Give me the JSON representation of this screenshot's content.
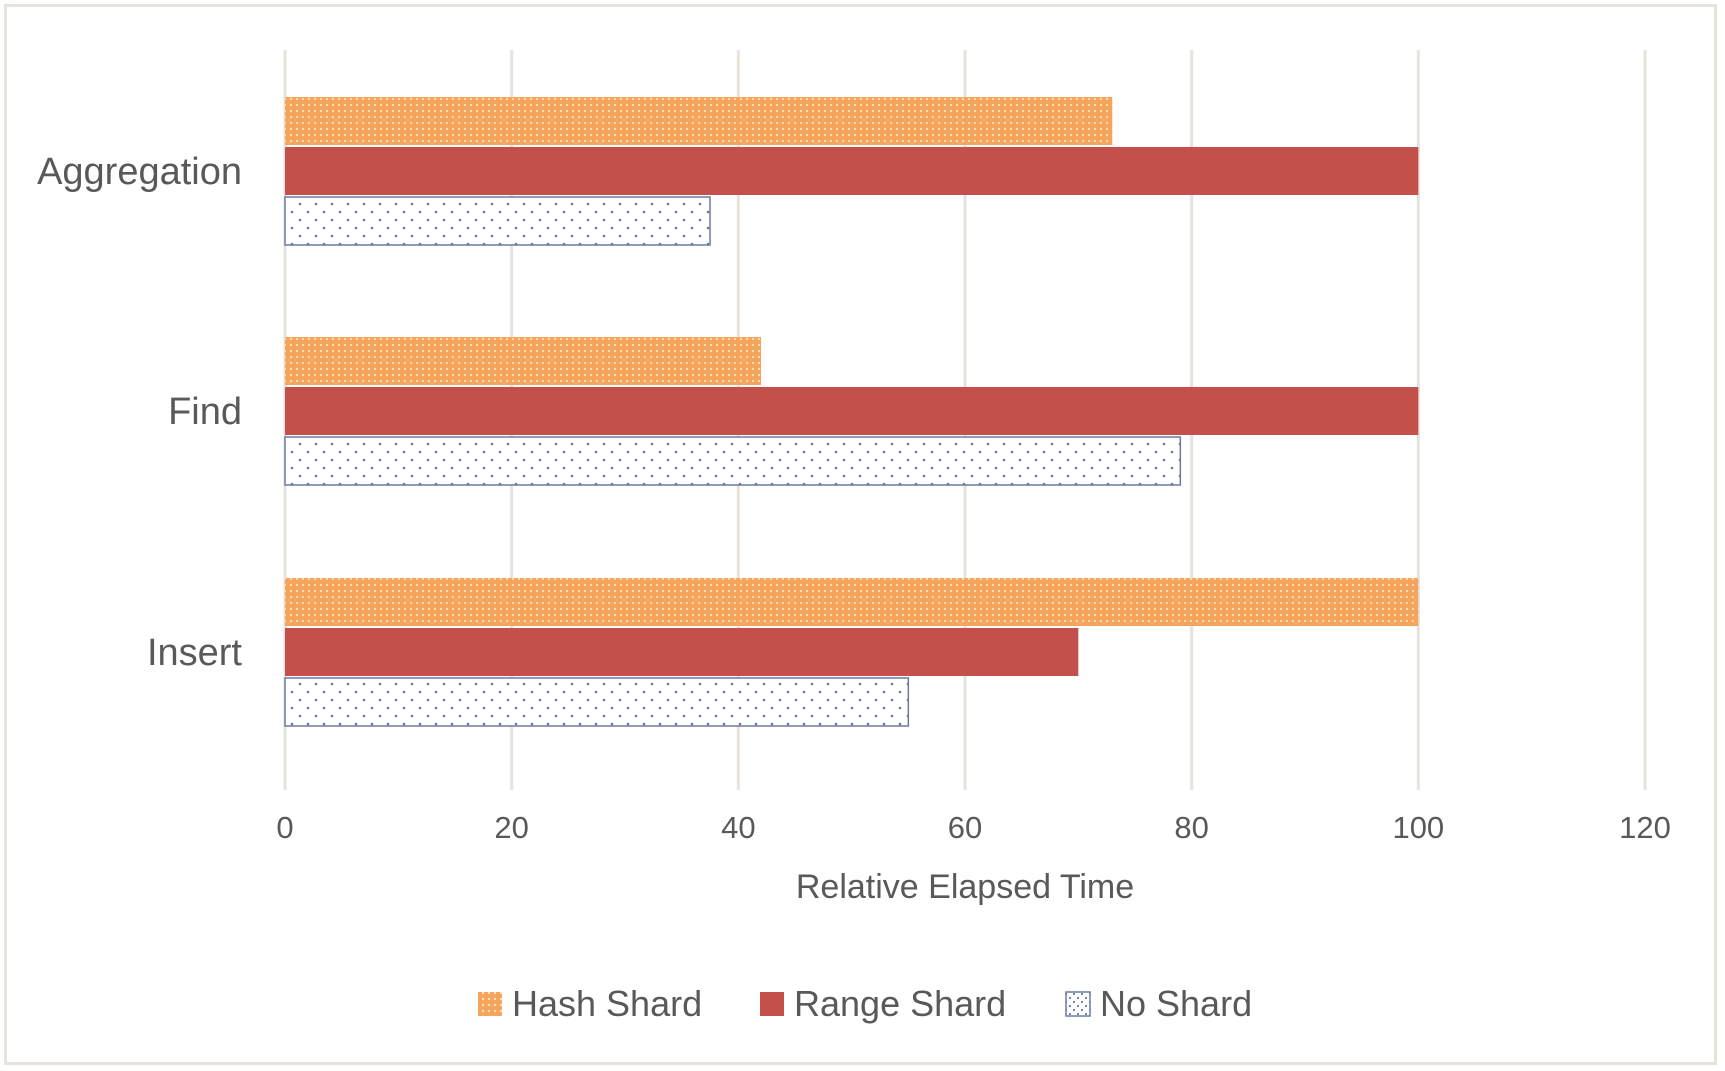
{
  "chart_data": {
    "type": "bar",
    "orientation": "horizontal",
    "categories": [
      "Aggregation",
      "Find",
      "Insert"
    ],
    "series": [
      {
        "name": "Hash Shard",
        "values": [
          73,
          42,
          100
        ],
        "color": "#f5a55b",
        "pattern": "dotted-orange"
      },
      {
        "name": "Range Shard",
        "values": [
          100,
          100,
          70
        ],
        "color": "#c4504b",
        "pattern": "solid"
      },
      {
        "name": "No Shard",
        "values": [
          37.5,
          79,
          55
        ],
        "color": "#ffffff",
        "pattern": "dotted-white"
      }
    ],
    "xlabel": "Relative Elapsed Time",
    "ylabel": "",
    "title": "",
    "xlim": [
      0,
      120
    ],
    "xticks": [
      "0",
      "20",
      "40",
      "60",
      "80",
      "100",
      "120"
    ],
    "grid": true,
    "legend": "bottom"
  }
}
